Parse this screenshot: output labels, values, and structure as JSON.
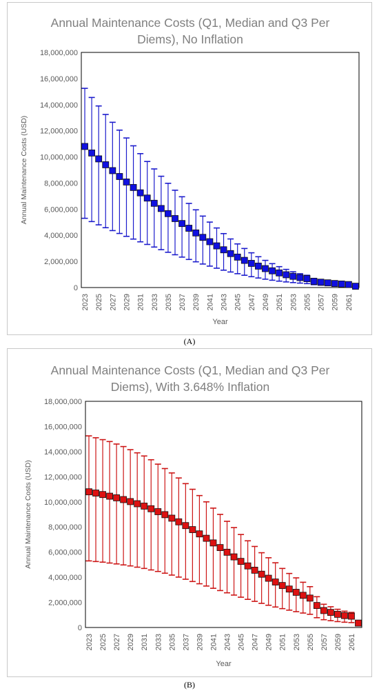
{
  "chart_data": [
    {
      "type": "scatter",
      "panel_label": "(A)",
      "title_lines": [
        "Annual Maintenance Costs (Q1, Median and Q3 Per",
        "Diems), No Inflation"
      ],
      "xlabel": "Year",
      "ylabel": "Annual Maintenance Costs (USD)",
      "ylim": [
        0,
        18000000
      ],
      "yticks": [
        0,
        2000000,
        4000000,
        6000000,
        8000000,
        10000000,
        12000000,
        14000000,
        16000000,
        18000000
      ],
      "ytick_labels": [
        "0",
        "2,000,000",
        "4,000,000",
        "6,000,000",
        "8,000,000",
        "10,000,000",
        "12,000,000",
        "14,000,000",
        "16,000,000",
        "18,000,000"
      ],
      "xtick_labels": [
        "2023",
        "2025",
        "2027",
        "2029",
        "2031",
        "2033",
        "2035",
        "2037",
        "2039",
        "2041",
        "2043",
        "2045",
        "2047",
        "2049",
        "2051",
        "2053",
        "2055",
        "2057",
        "2059",
        "2061"
      ],
      "marker_color": "#1010e0",
      "errorbar_color": "#1a1acc",
      "x": [
        2023,
        2024,
        2025,
        2026,
        2027,
        2028,
        2029,
        2030,
        2031,
        2032,
        2033,
        2034,
        2035,
        2036,
        2037,
        2038,
        2039,
        2040,
        2041,
        2042,
        2043,
        2044,
        2045,
        2046,
        2047,
        2048,
        2049,
        2050,
        2051,
        2052,
        2053,
        2054,
        2055,
        2056,
        2057,
        2058,
        2059,
        2060,
        2061,
        2062
      ],
      "median": [
        10800000,
        10300000,
        9850000,
        9400000,
        8950000,
        8500000,
        8080000,
        7660000,
        7250000,
        6850000,
        6450000,
        6050000,
        5660000,
        5280000,
        4900000,
        4540000,
        4180000,
        3840000,
        3510000,
        3190000,
        2890000,
        2600000,
        2330000,
        2080000,
        1850000,
        1640000,
        1450000,
        1280000,
        1120000,
        980000,
        860000,
        760000,
        680000,
        480000,
        410000,
        360000,
        310000,
        270000,
        230000,
        100000
      ],
      "q1": [
        5300000,
        5050000,
        4800000,
        4580000,
        4360000,
        4140000,
        3920000,
        3710000,
        3500000,
        3300000,
        3100000,
        2900000,
        2700000,
        2510000,
        2330000,
        2150000,
        1970000,
        1800000,
        1640000,
        1480000,
        1330000,
        1190000,
        1060000,
        940000,
        830000,
        730000,
        640000,
        560000,
        490000,
        430000,
        380000,
        340000,
        300000,
        220000,
        180000,
        160000,
        140000,
        120000,
        100000,
        50000
      ],
      "q3": [
        15250000,
        14550000,
        13900000,
        13250000,
        12650000,
        12050000,
        11450000,
        10850000,
        10250000,
        9650000,
        9080000,
        8520000,
        7980000,
        7450000,
        6950000,
        6440000,
        5950000,
        5470000,
        5010000,
        4560000,
        4130000,
        3720000,
        3340000,
        2990000,
        2660000,
        2360000,
        2080000,
        1830000,
        1600000,
        1390000,
        1210000,
        1060000,
        940000,
        700000,
        600000,
        530000,
        450000,
        400000,
        350000,
        150000
      ]
    },
    {
      "type": "scatter",
      "panel_label": "(B)",
      "title_lines": [
        "Annual Maintenance Costs (Q1, Median and Q3 Per",
        "Diems), With 3.648% Inflation"
      ],
      "xlabel": "Year",
      "ylabel": "Annual Maintenance Costs (USD)",
      "ylim": [
        0,
        18000000
      ],
      "yticks": [
        0,
        2000000,
        4000000,
        6000000,
        8000000,
        10000000,
        12000000,
        14000000,
        16000000,
        18000000
      ],
      "ytick_labels": [
        "0",
        "2,000,000",
        "4,000,000",
        "6,000,000",
        "8,000,000",
        "10,000,000",
        "12,000,000",
        "14,000,000",
        "16,000,000",
        "18,000,000"
      ],
      "xtick_labels": [
        "2023",
        "2025",
        "2027",
        "2029",
        "2031",
        "2033",
        "2035",
        "2037",
        "2039",
        "2041",
        "2043",
        "2045",
        "2047",
        "2049",
        "2051",
        "2053",
        "2055",
        "2057",
        "2059",
        "2061"
      ],
      "marker_color": "#dd1111",
      "errorbar_color": "#cc1414",
      "x": [
        2023,
        2024,
        2025,
        2026,
        2027,
        2028,
        2029,
        2030,
        2031,
        2032,
        2033,
        2034,
        2035,
        2036,
        2037,
        2038,
        2039,
        2040,
        2041,
        2042,
        2043,
        2044,
        2045,
        2046,
        2047,
        2048,
        2049,
        2050,
        2051,
        2052,
        2053,
        2054,
        2055,
        2056,
        2057,
        2058,
        2059,
        2060,
        2061,
        2062
      ],
      "median": [
        10800000,
        10700000,
        10580000,
        10450000,
        10320000,
        10180000,
        10020000,
        9850000,
        9660000,
        9450000,
        9220000,
        8980000,
        8700000,
        8410000,
        8110000,
        7790000,
        7450000,
        7100000,
        6730000,
        6360000,
        5990000,
        5620000,
        5260000,
        4900000,
        4560000,
        4240000,
        3920000,
        3620000,
        3340000,
        3060000,
        2800000,
        2560000,
        2340000,
        1750000,
        1350000,
        1200000,
        1050000,
        950000,
        900000,
        350000
      ],
      "q1": [
        5300000,
        5250000,
        5200000,
        5130000,
        5060000,
        4980000,
        4900000,
        4800000,
        4700000,
        4580000,
        4460000,
        4320000,
        4170000,
        4010000,
        3840000,
        3660000,
        3480000,
        3300000,
        3120000,
        2940000,
        2760000,
        2580000,
        2410000,
        2240000,
        2080000,
        1920000,
        1770000,
        1630000,
        1500000,
        1380000,
        1260000,
        1150000,
        1050000,
        780000,
        620000,
        540000,
        470000,
        420000,
        390000,
        150000
      ],
      "q3": [
        15250000,
        15100000,
        14950000,
        14800000,
        14600000,
        14400000,
        14150000,
        13900000,
        13650000,
        13350000,
        13000000,
        12650000,
        12300000,
        11900000,
        11450000,
        11000000,
        10500000,
        10000000,
        9500000,
        9000000,
        8450000,
        7950000,
        7400000,
        6900000,
        6450000,
        5950000,
        5550000,
        5150000,
        4700000,
        4300000,
        3950000,
        3600000,
        3250000,
        2450000,
        1850000,
        1650000,
        1450000,
        1300000,
        1200000,
        500000
      ]
    }
  ]
}
